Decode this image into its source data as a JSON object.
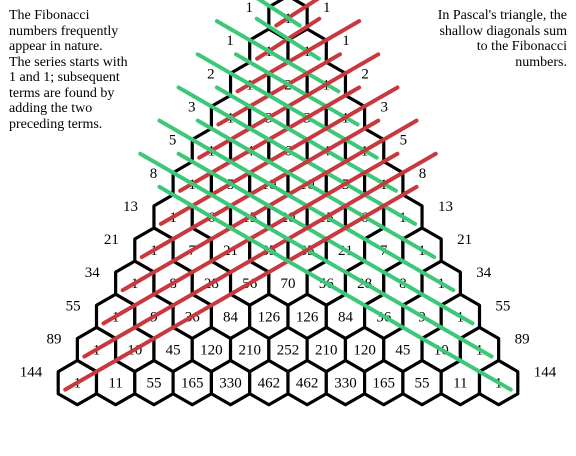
{
  "notes": {
    "left": [
      "The Fibonacci",
      "numbers frequently",
      "appear in nature.",
      "The series starts with",
      "1 and 1; subsequent",
      "terms are found by",
      "adding the two",
      "preceding terms."
    ],
    "right": [
      "In Pascal's triangle, the",
      "shallow diagonals  sum",
      "to the Fibonacci",
      "numbers."
    ]
  },
  "fibonacci": [
    "1",
    "1",
    "2",
    "3",
    "5",
    "8",
    "13",
    "21",
    "34",
    "55",
    "89",
    "144"
  ],
  "pascal_rows": [
    [
      "1"
    ],
    [
      "1",
      "1"
    ],
    [
      "1",
      "2",
      "1"
    ],
    [
      "1",
      "3",
      "3",
      "1"
    ],
    [
      "1",
      "4",
      "6",
      "4",
      "1"
    ],
    [
      "1",
      "5",
      "10",
      "10",
      "5",
      "1"
    ],
    [
      "1",
      "6",
      "15",
      "20",
      "15",
      "6",
      "1"
    ],
    [
      "1",
      "7",
      "21",
      "35",
      "35",
      "21",
      "7",
      "1"
    ],
    [
      "1",
      "8",
      "28",
      "56",
      "70",
      "56",
      "28",
      "8",
      "1"
    ],
    [
      "1",
      "9",
      "36",
      "84",
      "126",
      "126",
      "84",
      "36",
      "9",
      "1"
    ],
    [
      "1",
      "10",
      "45",
      "120",
      "210",
      "252",
      "210",
      "120",
      "45",
      "10",
      "1"
    ],
    [
      "1",
      "11",
      "55",
      "165",
      "330",
      "462",
      "462",
      "330",
      "165",
      "55",
      "11",
      "1"
    ]
  ],
  "colors": {
    "red_diagonal": "#c8383c",
    "green_diagonal": "#3cc878",
    "hex_stroke": "#000000"
  }
}
